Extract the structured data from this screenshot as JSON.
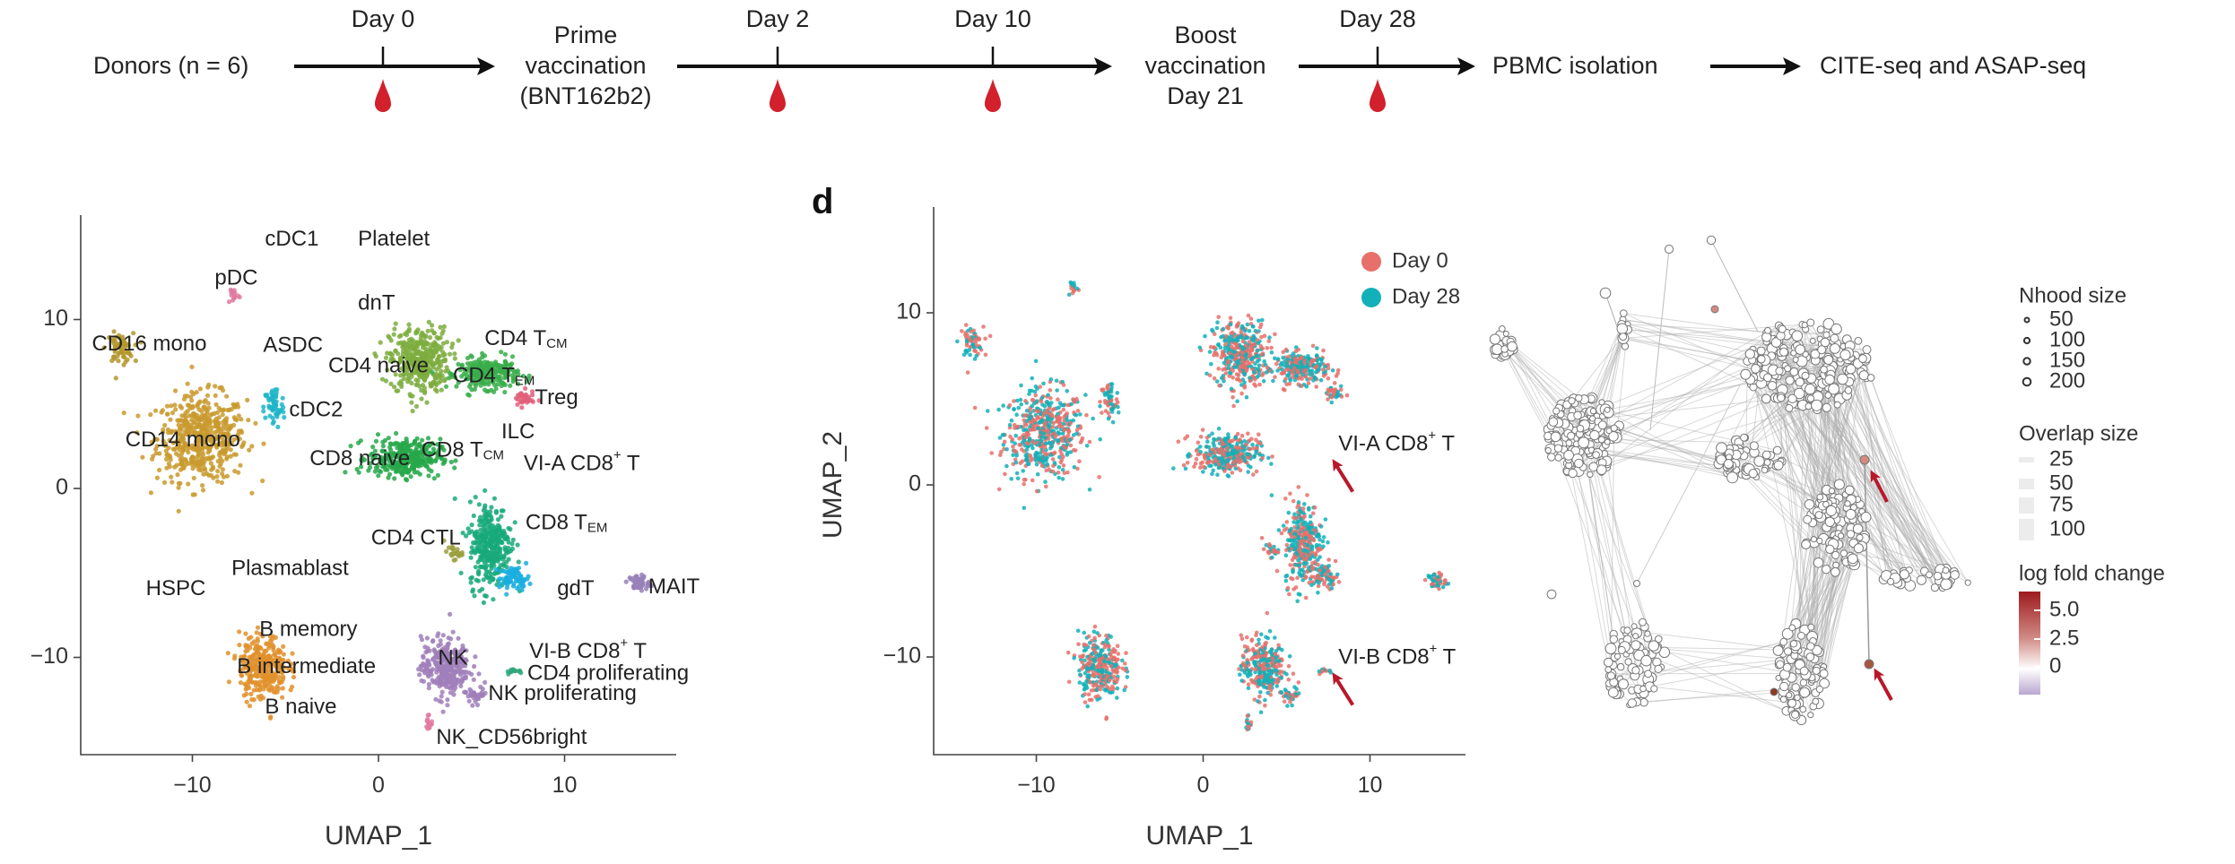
{
  "timeline": {
    "steps": [
      {
        "text": "Donors (n = 6)"
      },
      {
        "lines": [
          "Prime",
          "vaccination",
          "(BNT162b2)"
        ]
      },
      {
        "lines": [
          "Boost",
          "vaccination",
          "Day 21"
        ]
      },
      {
        "text": "PBMC isolation"
      },
      {
        "text": "CITE-seq and ASAP-seq"
      }
    ],
    "days": [
      "Day 0",
      "Day 2",
      "Day 10",
      "Day 28"
    ],
    "blood_draw_icon": "blood-drop-icon",
    "drop_color": "#d2202c"
  },
  "chart_data": [
    {
      "type": "scatter",
      "xlabel": "UMAP_1",
      "ylabel": "",
      "xlim": [
        -16,
        16
      ],
      "ylim": [
        -16,
        16
      ],
      "xticks": [
        "−10",
        "0",
        "10"
      ],
      "yticks": [
        "10",
        "0",
        "−10"
      ],
      "grid": false,
      "clusters": [
        {
          "name": "CD14 mono",
          "color": "#c99a2e",
          "x": -9.5,
          "y": 3.0,
          "sx": 1.5,
          "sy": 1.6,
          "n": 520
        },
        {
          "name": "CD16 mono",
          "color": "#b3962c",
          "x": -13.9,
          "y": 8.3,
          "sx": 0.45,
          "sy": 0.55,
          "n": 60
        },
        {
          "name": "cDC2",
          "color": "#1fb5c9",
          "x": -5.6,
          "y": 4.8,
          "sx": 0.35,
          "sy": 0.8,
          "n": 60
        },
        {
          "name": "pDC",
          "color": "#e07aa0",
          "x": -7.8,
          "y": 11.5,
          "sx": 0.2,
          "sy": 0.35,
          "n": 15
        },
        {
          "name": "CD4 naive",
          "color": "#7cad3e",
          "x": 2.2,
          "y": 7.6,
          "sx": 1.0,
          "sy": 1.2,
          "n": 380
        },
        {
          "name": "CD4 TEM",
          "color": "#38ad4a",
          "x": 5.9,
          "y": 6.8,
          "sx": 1.0,
          "sy": 0.55,
          "n": 260
        },
        {
          "name": "Treg",
          "color": "#e2607a",
          "x": 7.8,
          "y": 5.3,
          "sx": 0.35,
          "sy": 0.3,
          "n": 40
        },
        {
          "name": "CD8 naive",
          "color": "#27a84a",
          "x": 1.4,
          "y": 1.8,
          "sx": 1.2,
          "sy": 0.7,
          "n": 320
        },
        {
          "name": "CD8 TEM",
          "color": "#17a97a",
          "x": 6.0,
          "y": -3.3,
          "sx": 0.7,
          "sy": 1.6,
          "n": 320
        },
        {
          "name": "gdT",
          "color": "#1aaee0",
          "x": 7.3,
          "y": -5.3,
          "sx": 0.5,
          "sy": 0.4,
          "n": 70
        },
        {
          "name": "MAIT",
          "color": "#9880b8",
          "x": 14.0,
          "y": -5.6,
          "sx": 0.35,
          "sy": 0.3,
          "n": 50
        },
        {
          "name": "CD4 CTL",
          "color": "#9ba040",
          "x": 4.0,
          "y": -3.8,
          "sx": 0.3,
          "sy": 0.25,
          "n": 25
        },
        {
          "name": "NK",
          "color": "#a07fba",
          "x": 3.6,
          "y": -10.6,
          "sx": 0.8,
          "sy": 1.1,
          "n": 300
        },
        {
          "name": "NK proliferating",
          "color": "#a07fba",
          "x": 5.3,
          "y": -12.2,
          "sx": 0.35,
          "sy": 0.25,
          "n": 30
        },
        {
          "name": "NK_CD56bright",
          "color": "#e07aa0",
          "x": 2.7,
          "y": -13.8,
          "sx": 0.12,
          "sy": 0.35,
          "n": 15
        },
        {
          "name": "B cells",
          "color": "#e0902c",
          "x": -6.2,
          "y": -10.6,
          "sx": 0.8,
          "sy": 1.2,
          "n": 300
        },
        {
          "name": "CD4 proliferating",
          "color": "#2fa57a",
          "x": 7.3,
          "y": -10.8,
          "sx": 0.3,
          "sy": 0.1,
          "n": 12
        }
      ],
      "annotations": [
        {
          "text": "cDC1",
          "x": -6.1,
          "y": 14.7
        },
        {
          "text": "Platelet",
          "x": -1.1,
          "y": 14.7
        },
        {
          "text": "pDC",
          "x": -8.8,
          "y": 12.4
        },
        {
          "text": "dnT",
          "x": -1.1,
          "y": 10.9
        },
        {
          "text": "CD16 mono",
          "x": -15.4,
          "y": 8.5
        },
        {
          "text": "ASDC",
          "x": -6.2,
          "y": 8.4
        },
        {
          "text": "CD4 naive",
          "x": -2.7,
          "y": 7.2
        },
        {
          "text": "CD4 T",
          "sub": "CM",
          "x": 5.7,
          "y": 8.8
        },
        {
          "text": "CD4 T",
          "sub": "EM",
          "x": 4.0,
          "y": 6.6
        },
        {
          "text": "Treg",
          "x": 8.4,
          "y": 5.3
        },
        {
          "text": "cDC2",
          "x": -4.8,
          "y": 4.6
        },
        {
          "text": "ILC",
          "x": 6.6,
          "y": 3.3
        },
        {
          "text": "CD14 mono",
          "x": -13.6,
          "y": 2.8
        },
        {
          "text": "CD8 naive",
          "x": -3.7,
          "y": 1.7
        },
        {
          "text": "CD8 T",
          "sub": "CM",
          "x": 2.3,
          "y": 2.2
        },
        {
          "text": "VI-A CD8",
          "sup": "+",
          "after": " T",
          "x": 7.8,
          "y": 1.4
        },
        {
          "text": "CD8 T",
          "sub": "EM",
          "x": 7.9,
          "y": -2.1
        },
        {
          "text": "CD4 CTL",
          "x": -0.4,
          "y": -3.0
        },
        {
          "text": "Plasmablast",
          "x": -7.9,
          "y": -4.8
        },
        {
          "text": "HSPC",
          "x": -12.5,
          "y": -6.0
        },
        {
          "text": "gdT",
          "x": 9.6,
          "y": -6.0
        },
        {
          "text": "MAIT",
          "x": 14.5,
          "y": -5.9
        },
        {
          "text": "B memory",
          "x": -6.4,
          "y": -8.4
        },
        {
          "text": "VI-B CD8",
          "sup": "+",
          "after": " T",
          "x": 8.1,
          "y": -9.7
        },
        {
          "text": "NK",
          "x": 3.2,
          "y": -10.1
        },
        {
          "text": "B intermediate",
          "x": -7.6,
          "y": -10.6
        },
        {
          "text": "CD4 proliferating",
          "x": 8.0,
          "y": -11.0
        },
        {
          "text": "NK proliferating",
          "x": 5.9,
          "y": -12.2
        },
        {
          "text": "B naive",
          "x": -6.1,
          "y": -13.0
        },
        {
          "text": "NK_CD56bright",
          "x": 3.1,
          "y": -14.8
        }
      ]
    },
    {
      "type": "scatter",
      "panel_label": "d",
      "xlabel": "UMAP_1",
      "ylabel": "UMAP_2",
      "xlim": [
        -16,
        16
      ],
      "ylim": [
        -15.8,
        16
      ],
      "xticks": [
        "−10",
        "0",
        "10"
      ],
      "yticks": [
        "10",
        "0",
        "−10"
      ],
      "grid": false,
      "legend_position": "top-right",
      "series": [
        {
          "name": "Day 0",
          "color": "#e8706a"
        },
        {
          "name": "Day 28",
          "color": "#12b0b8"
        }
      ],
      "annotations": [
        {
          "text": "VI-A CD8",
          "sup": "+",
          "after": " T",
          "x": 8.0,
          "y": 1.9,
          "arrow": true
        },
        {
          "text": "VI-B CD8",
          "sup": "+",
          "after": " T",
          "x": 8.0,
          "y": -10.5,
          "arrow": true
        }
      ],
      "arrow_color": "#b8182a"
    },
    {
      "type": "network",
      "legend": {
        "nhood_title": "Nhood size",
        "nhood_values": [
          "50",
          "100",
          "150",
          "200"
        ],
        "overlap_title": "Overlap size",
        "overlap_values": [
          "25",
          "50",
          "75",
          "100"
        ],
        "lfc_title": "log fold change",
        "lfc_ticks": [
          "5.0",
          "2.5",
          "0"
        ],
        "lfc_colors": [
          "#9e1a1e",
          "#d08a84",
          "#ffffff",
          "#b9a6cf"
        ]
      },
      "arrow_color": "#b8182a"
    }
  ]
}
